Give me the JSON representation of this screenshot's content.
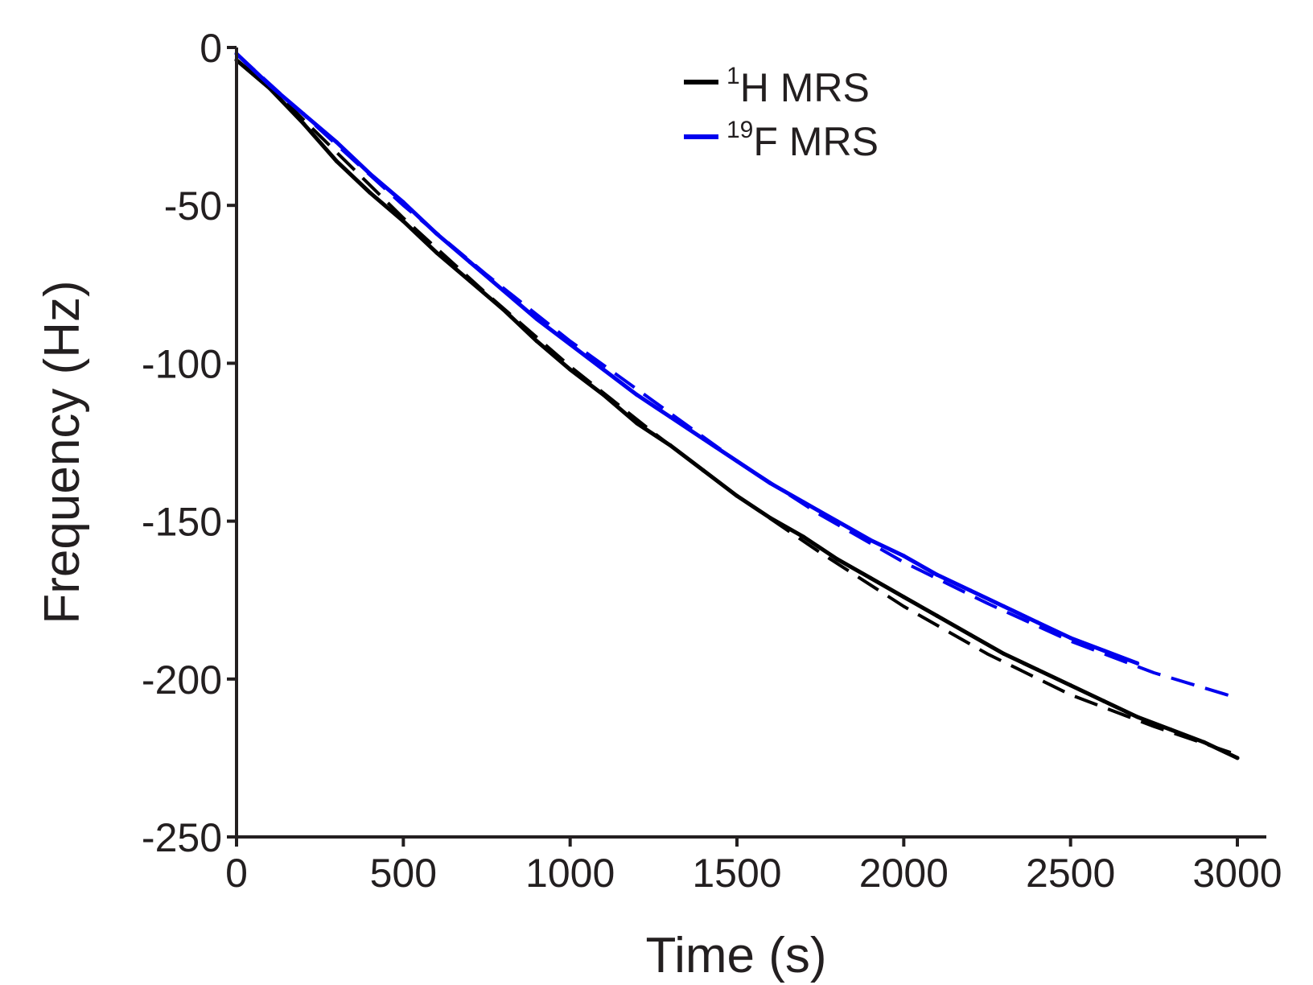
{
  "chart_data": {
    "type": "line",
    "title": "",
    "xlabel": "Time (s)",
    "ylabel": "Frequency (Hz)",
    "xlim": [
      0,
      3000
    ],
    "ylim": [
      -250,
      0
    ],
    "x_ticks": [
      0,
      500,
      1000,
      1500,
      2000,
      2500,
      3000
    ],
    "y_ticks": [
      0,
      -50,
      -100,
      -150,
      -200,
      -250
    ],
    "x_tick_labels": [
      "0",
      "500",
      "1000",
      "1500",
      "2000",
      "2500",
      "3000"
    ],
    "y_tick_labels": [
      "0",
      "-50",
      "-100",
      "-150",
      "-200",
      "-250"
    ],
    "grid": false,
    "legend_position": "top-center",
    "series": [
      {
        "name": "1H MRS",
        "legend_sup": "1",
        "legend_main": "H MRS",
        "color": "#000000",
        "measured": [
          [
            0,
            -4
          ],
          [
            100,
            -13
          ],
          [
            200,
            -24
          ],
          [
            300,
            -36
          ],
          [
            400,
            -46
          ],
          [
            500,
            -55
          ],
          [
            600,
            -65
          ],
          [
            700,
            -74
          ],
          [
            800,
            -83
          ],
          [
            900,
            -93
          ],
          [
            1000,
            -102
          ],
          [
            1100,
            -110
          ],
          [
            1200,
            -119
          ],
          [
            1300,
            -126
          ],
          [
            1400,
            -134
          ],
          [
            1500,
            -142
          ],
          [
            1600,
            -149
          ],
          [
            1700,
            -155
          ],
          [
            1800,
            -162
          ],
          [
            1900,
            -168
          ],
          [
            2000,
            -174
          ],
          [
            2100,
            -180
          ],
          [
            2200,
            -186
          ],
          [
            2300,
            -192
          ],
          [
            2400,
            -197
          ],
          [
            2500,
            -202
          ],
          [
            2600,
            -207
          ],
          [
            2700,
            -212
          ],
          [
            2800,
            -216
          ],
          [
            2900,
            -220
          ],
          [
            3000,
            -225
          ]
        ],
        "fit": [
          [
            0,
            -2
          ],
          [
            250,
            -28
          ],
          [
            500,
            -54
          ],
          [
            750,
            -78
          ],
          [
            1000,
            -101
          ],
          [
            1250,
            -122
          ],
          [
            1500,
            -142
          ],
          [
            1750,
            -160
          ],
          [
            2000,
            -177
          ],
          [
            2250,
            -192
          ],
          [
            2500,
            -205
          ],
          [
            2750,
            -215
          ],
          [
            3000,
            -224
          ]
        ]
      },
      {
        "name": "19F MRS",
        "legend_sup": "19",
        "legend_main": "F MRS",
        "color": "#0000ee",
        "measured": [
          [
            0,
            -2
          ],
          [
            100,
            -12
          ],
          [
            200,
            -21
          ],
          [
            300,
            -30
          ],
          [
            400,
            -40
          ],
          [
            500,
            -49
          ],
          [
            600,
            -59
          ],
          [
            700,
            -68
          ],
          [
            800,
            -77
          ],
          [
            900,
            -86
          ],
          [
            1000,
            -94
          ],
          [
            1100,
            -102
          ],
          [
            1200,
            -110
          ],
          [
            1300,
            -117
          ],
          [
            1400,
            -124
          ],
          [
            1500,
            -131
          ],
          [
            1600,
            -138
          ],
          [
            1700,
            -144
          ],
          [
            1800,
            -150
          ],
          [
            1900,
            -156
          ],
          [
            2000,
            -161
          ],
          [
            2100,
            -167
          ],
          [
            2200,
            -172
          ],
          [
            2300,
            -177
          ],
          [
            2400,
            -182
          ],
          [
            2500,
            -187
          ],
          [
            2600,
            -191
          ],
          [
            2700,
            -195
          ]
        ],
        "fit": [
          [
            0,
            -2
          ],
          [
            250,
            -26
          ],
          [
            500,
            -50
          ],
          [
            750,
            -72
          ],
          [
            1000,
            -93
          ],
          [
            1250,
            -112
          ],
          [
            1500,
            -131
          ],
          [
            1750,
            -148
          ],
          [
            2000,
            -163
          ],
          [
            2250,
            -176
          ],
          [
            2500,
            -188
          ],
          [
            2750,
            -198
          ],
          [
            3000,
            -206
          ]
        ]
      }
    ]
  }
}
